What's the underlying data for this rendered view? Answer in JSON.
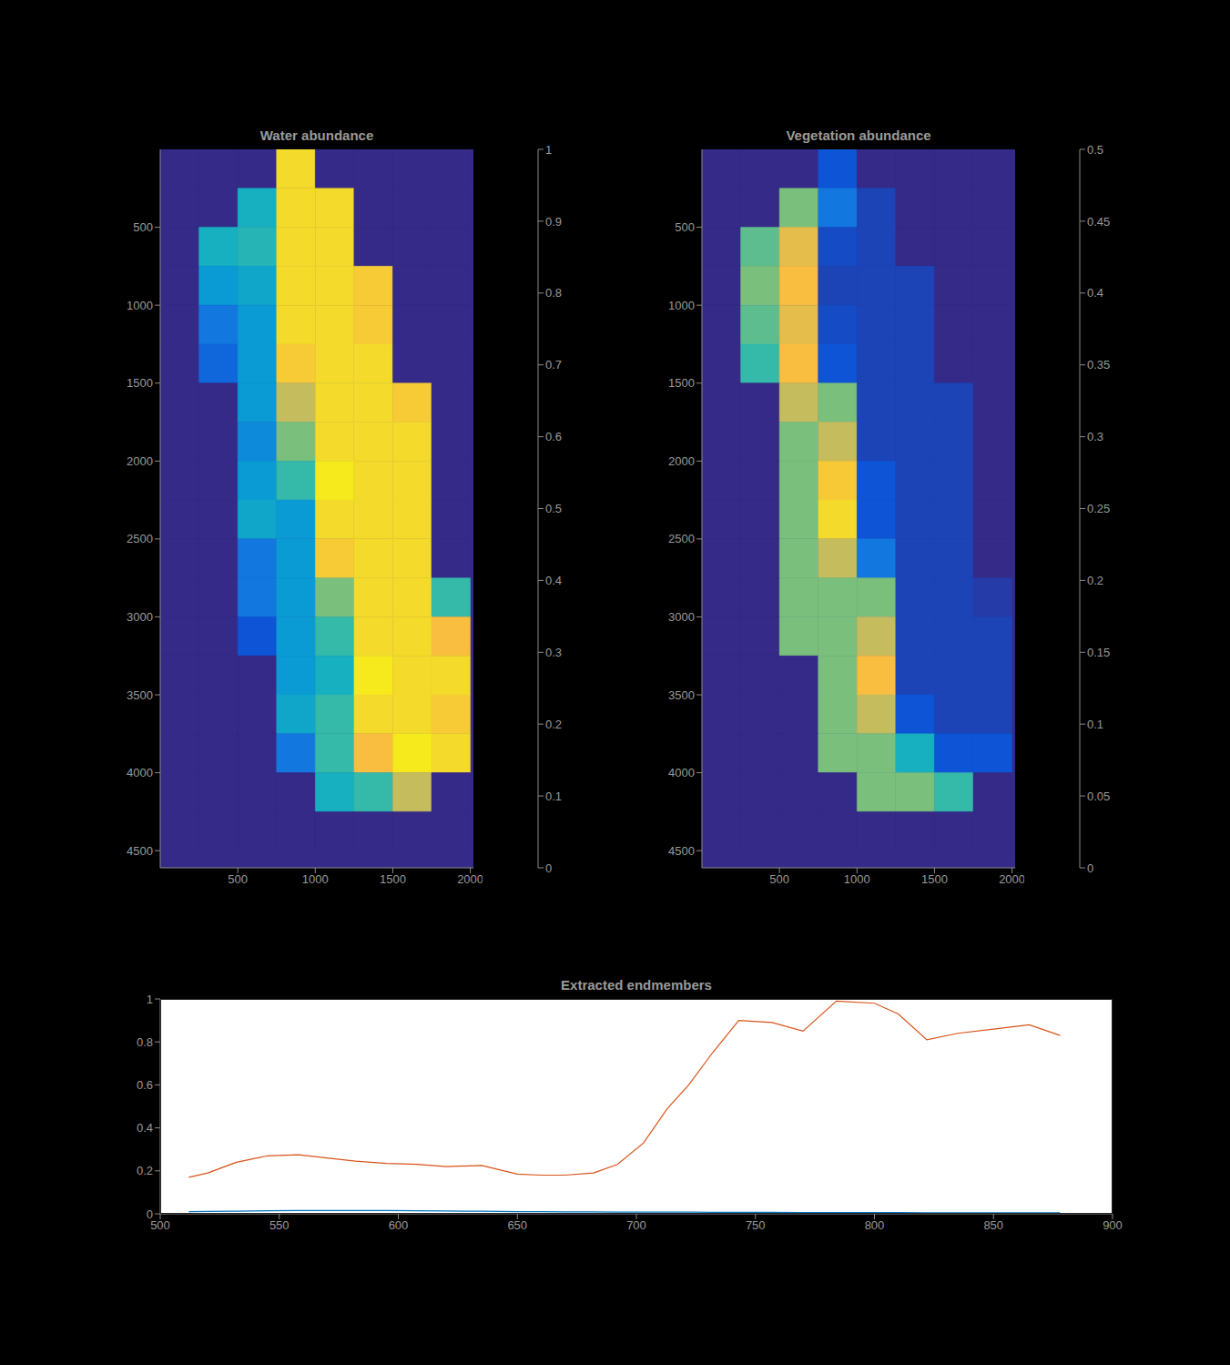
{
  "chart_data": [
    {
      "type": "heatmap",
      "title": "Water abundance",
      "xlim": [
        0,
        2020
      ],
      "ylim": [
        0,
        4610
      ],
      "xticks": [
        500,
        1000,
        1500,
        2000
      ],
      "yticks": [
        500,
        1000,
        1500,
        2000,
        2500,
        3000,
        3500,
        4000,
        4500
      ],
      "x_edges": [
        0,
        250,
        500,
        750,
        1000,
        1250,
        1500,
        1750,
        2000
      ],
      "y_edges": [
        0,
        250,
        500,
        750,
        1000,
        1250,
        1500,
        1750,
        2000,
        2250,
        2500,
        2750,
        3000,
        3250,
        3500,
        3750,
        4000,
        4250,
        4500
      ],
      "cells": [
        [
          0,
          0,
          0,
          0.9,
          0,
          0,
          0,
          0
        ],
        [
          0,
          0,
          0.4,
          0.9,
          0.9,
          0,
          0,
          0
        ],
        [
          0,
          0.4,
          0.45,
          0.9,
          0.9,
          0,
          0,
          0
        ],
        [
          0,
          0.3,
          0.35,
          0.9,
          0.9,
          0.85,
          0,
          0
        ],
        [
          0,
          0.2,
          0.3,
          0.9,
          0.9,
          0.85,
          0,
          0
        ],
        [
          0,
          0.15,
          0.3,
          0.85,
          0.9,
          0.9,
          0,
          0
        ],
        [
          0,
          0,
          0.3,
          0.7,
          0.9,
          0.9,
          0.85,
          0
        ],
        [
          0,
          0,
          0.25,
          0.6,
          0.9,
          0.9,
          0.9,
          0
        ],
        [
          0,
          0,
          0.3,
          0.5,
          0.95,
          0.9,
          0.9,
          0
        ],
        [
          0,
          0,
          0.35,
          0.3,
          0.9,
          0.9,
          0.9,
          0
        ],
        [
          0,
          0,
          0.2,
          0.3,
          0.85,
          0.9,
          0.9,
          0
        ],
        [
          0,
          0,
          0.2,
          0.3,
          0.6,
          0.9,
          0.9,
          0.5
        ],
        [
          0,
          0,
          0.1,
          0.3,
          0.5,
          0.9,
          0.9,
          0.8
        ],
        [
          0,
          0,
          0,
          0.3,
          0.4,
          0.95,
          0.9,
          0.9
        ],
        [
          0,
          0,
          0,
          0.35,
          0.5,
          0.9,
          0.9,
          0.85
        ],
        [
          0,
          0,
          0,
          0.2,
          0.5,
          0.8,
          0.95,
          0.9
        ],
        [
          0,
          0,
          0,
          0,
          0.4,
          0.5,
          0.7,
          0
        ],
        [
          0,
          0,
          0,
          0,
          0,
          0,
          0,
          0
        ]
      ],
      "colorbar_range": [
        0,
        1
      ],
      "colorbar_ticks": [
        0,
        0.1,
        0.2,
        0.3,
        0.4,
        0.5,
        0.6,
        0.7,
        0.8,
        0.9,
        1
      ]
    },
    {
      "type": "heatmap",
      "title": "Vegetation abundance",
      "xlim": [
        0,
        2020
      ],
      "ylim": [
        0,
        4610
      ],
      "xticks": [
        500,
        1000,
        1500,
        2000
      ],
      "yticks": [
        500,
        1000,
        1500,
        2000,
        2500,
        3000,
        3500,
        4000,
        4500
      ],
      "x_edges": [
        0,
        250,
        500,
        750,
        1000,
        1250,
        1500,
        1750,
        2000
      ],
      "y_edges": [
        0,
        250,
        500,
        750,
        1000,
        1250,
        1500,
        1750,
        2000,
        2250,
        2500,
        2750,
        3000,
        3250,
        3500,
        3750,
        4000,
        4250,
        4500
      ],
      "cells": [
        [
          0,
          0,
          0,
          0.05,
          0,
          0,
          0,
          0
        ],
        [
          0,
          0,
          0.3,
          0.1,
          0.03,
          0,
          0,
          0
        ],
        [
          0,
          0.28,
          0.38,
          0.04,
          0.03,
          0,
          0,
          0
        ],
        [
          0,
          0.3,
          0.4,
          0.03,
          0.03,
          0.03,
          0,
          0
        ],
        [
          0,
          0.28,
          0.38,
          0.04,
          0.03,
          0.03,
          0,
          0
        ],
        [
          0,
          0.25,
          0.4,
          0.05,
          0.03,
          0.03,
          0,
          0
        ],
        [
          0,
          0,
          0.35,
          0.3,
          0.03,
          0.03,
          0.03,
          0
        ],
        [
          0,
          0,
          0.3,
          0.35,
          0.03,
          0.03,
          0.03,
          0
        ],
        [
          0,
          0,
          0.3,
          0.42,
          0.05,
          0.03,
          0.03,
          0
        ],
        [
          0,
          0,
          0.3,
          0.45,
          0.05,
          0.03,
          0.03,
          0
        ],
        [
          0,
          0,
          0.3,
          0.35,
          0.1,
          0.03,
          0.03,
          0
        ],
        [
          0,
          0,
          0.3,
          0.3,
          0.3,
          0.03,
          0.03,
          0.02
        ],
        [
          0,
          0,
          0.3,
          0.3,
          0.35,
          0.03,
          0.03,
          0.03
        ],
        [
          0,
          0,
          0,
          0.3,
          0.4,
          0.03,
          0.03,
          0.03
        ],
        [
          0,
          0,
          0,
          0.3,
          0.35,
          0.05,
          0.03,
          0.03
        ],
        [
          0,
          0,
          0,
          0.3,
          0.3,
          0.2,
          0.05,
          0.05
        ],
        [
          0,
          0,
          0,
          0,
          0.3,
          0.3,
          0.25,
          0
        ],
        [
          0,
          0,
          0,
          0,
          0,
          0,
          0,
          0
        ]
      ],
      "colorbar_range": [
        0,
        0.5
      ],
      "colorbar_ticks": [
        0,
        0.05,
        0.1,
        0.15,
        0.2,
        0.25,
        0.3,
        0.35,
        0.4,
        0.45,
        0.5
      ]
    },
    {
      "type": "line",
      "title": "Extracted endmembers",
      "x": [
        512,
        520,
        532,
        545,
        558,
        570,
        582,
        595,
        608,
        620,
        635,
        650,
        660,
        670,
        682,
        692,
        703,
        713,
        722,
        732,
        743,
        757,
        770,
        784,
        800,
        810,
        822,
        835,
        850,
        865,
        878
      ],
      "series": [
        {
          "color": "#0072bd",
          "values": [
            0.01,
            0.011,
            0.012,
            0.014,
            0.015,
            0.015,
            0.015,
            0.015,
            0.014,
            0.013,
            0.012,
            0.01,
            0.01,
            0.009,
            0.009,
            0.008,
            0.008,
            0.008,
            0.008,
            0.007,
            0.007,
            0.007,
            0.006,
            0.006,
            0.006,
            0.006,
            0.005,
            0.005,
            0.005,
            0.005,
            0.005
          ]
        },
        {
          "color": "#d95319",
          "values": [
            0.17,
            0.19,
            0.24,
            0.27,
            0.275,
            0.26,
            0.245,
            0.235,
            0.23,
            0.22,
            0.225,
            0.185,
            0.18,
            0.18,
            0.19,
            0.23,
            0.33,
            0.49,
            0.6,
            0.75,
            0.9,
            0.89,
            0.85,
            0.99,
            0.98,
            0.93,
            0.81,
            0.84,
            0.86,
            0.88,
            0.83
          ]
        }
      ],
      "xlim": [
        500,
        900
      ],
      "xticks": [
        500,
        550,
        600,
        650,
        700,
        750,
        800,
        850,
        900
      ],
      "ylim": [
        0,
        1
      ],
      "yticks": [
        0,
        0.2,
        0.4,
        0.6,
        0.8,
        1
      ]
    }
  ]
}
